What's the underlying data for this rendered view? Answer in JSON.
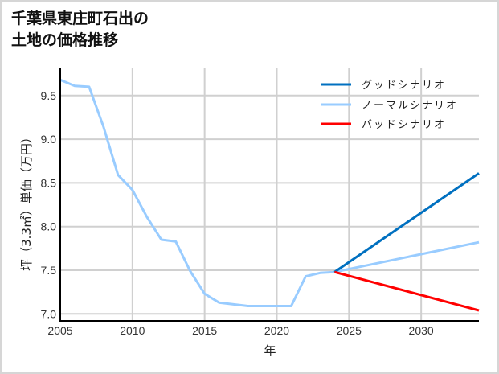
{
  "title_line1": "千葉県東庄町石出の",
  "title_line2": "土地の価格推移",
  "chart_data": {
    "type": "line",
    "title": "千葉県東庄町石出の土地の価格推移",
    "xlabel": "年",
    "ylabel": "坪（3.3㎡）単価（万円）",
    "xlim": [
      2005,
      2034
    ],
    "ylim": [
      6.92,
      9.82
    ],
    "xticks": [
      2005,
      2010,
      2015,
      2020,
      2025,
      2030
    ],
    "xtick_labels": [
      "2005",
      "2010",
      "2015",
      "2020",
      "2025",
      "2030"
    ],
    "yticks": [
      7.0,
      7.5,
      8.0,
      8.5,
      9.0,
      9.5
    ],
    "ytick_labels": [
      "7.0",
      "7.5",
      "8.0",
      "8.5",
      "9.0",
      "9.5"
    ],
    "grid": true,
    "legend_position": "upper right",
    "series": [
      {
        "name": "グッドシナリオ",
        "color": "#0070c0",
        "x": [
          2024,
          2034
        ],
        "values": [
          7.48,
          8.61
        ]
      },
      {
        "name": "ノーマルシナリオ",
        "color": "#99ccff",
        "x": [
          2005,
          2006,
          2007,
          2008,
          2009,
          2010,
          2011,
          2012,
          2013,
          2014,
          2015,
          2016,
          2017,
          2018,
          2019,
          2020,
          2021,
          2022,
          2023,
          2024,
          2034
        ],
        "values": [
          9.68,
          9.61,
          9.6,
          9.14,
          8.59,
          8.42,
          8.11,
          7.85,
          7.83,
          7.49,
          7.23,
          7.13,
          7.11,
          7.09,
          7.09,
          7.09,
          7.09,
          7.43,
          7.47,
          7.48,
          7.82
        ]
      },
      {
        "name": "バッドシナリオ",
        "color": "#ff0000",
        "x": [
          2024,
          2034
        ],
        "values": [
          7.48,
          7.04
        ]
      }
    ]
  }
}
